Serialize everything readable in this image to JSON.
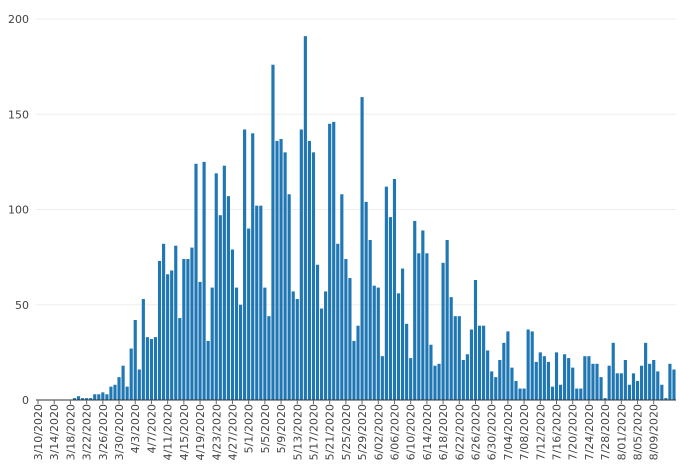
{
  "chart_data": {
    "type": "bar",
    "title": "",
    "xlabel": "",
    "ylabel": "",
    "ylim": [
      0,
      200
    ],
    "grid": true,
    "legend": "none",
    "bar_color": "#1f77b4",
    "grid_color": "#eeeeee",
    "ytick_values": [
      0,
      50,
      100,
      150,
      200
    ],
    "ytick_labels": [
      "0",
      "50",
      "100",
      "150",
      "200"
    ],
    "x_start_date": "3/10/2020",
    "xtick_labels": [
      "3/10/2020",
      "3/14/2020",
      "3/18/2020",
      "3/22/2020",
      "3/26/2020",
      "3/30/2020",
      "4/3/2020",
      "4/7/2020",
      "4/11/2020",
      "4/15/2020",
      "4/19/2020",
      "4/23/2020",
      "4/27/2020",
      "5/1/2020",
      "5/5/2020",
      "5/9/2020",
      "5/13/2020",
      "5/17/2020",
      "5/21/2020",
      "5/25/2020",
      "5/29/2020",
      "6/02/2020",
      "6/06/2020",
      "6/10/2020",
      "6/14/2020",
      "6/18/2020",
      "6/22/2020",
      "6/26/2020",
      "6/30/2020",
      "7/04/2020",
      "7/08/2020",
      "7/12/2020",
      "7/16/2020",
      "7/20/2020",
      "7/24/2020",
      "7/28/2020",
      "8/01/2020",
      "8/05/2020",
      "8/09/2020"
    ],
    "series": [
      {
        "values": [
          0,
          0,
          0,
          0,
          0,
          0,
          0,
          0,
          0,
          1,
          2,
          1,
          1,
          1,
          3,
          3,
          4,
          3,
          7,
          8,
          12,
          18,
          7,
          27,
          42,
          16,
          53,
          33,
          32,
          33,
          73,
          82,
          66,
          68,
          81,
          43,
          74,
          74,
          80,
          124,
          62,
          125,
          31,
          59,
          119,
          97,
          123,
          107,
          79,
          59,
          50,
          142,
          90,
          140,
          102,
          102,
          59,
          44,
          176,
          136,
          137,
          130,
          108,
          57,
          53,
          142,
          191,
          136,
          130,
          71,
          48,
          57,
          145,
          146,
          82,
          108,
          74,
          64,
          31,
          39,
          159,
          104,
          84,
          60,
          59,
          23,
          112,
          96,
          116,
          56,
          69,
          40,
          22,
          94,
          77,
          89,
          77,
          29,
          18,
          19,
          72,
          84,
          54,
          44,
          44,
          21,
          24,
          37,
          63,
          39,
          39,
          26,
          15,
          12,
          21,
          30,
          36,
          17,
          10,
          6,
          6,
          37,
          36,
          20,
          25,
          23,
          20,
          7,
          25,
          8,
          24,
          22,
          17,
          6,
          6,
          23,
          23,
          19,
          19,
          12,
          1,
          18,
          30,
          14,
          14,
          21,
          8,
          14,
          10,
          18,
          30,
          19,
          21,
          15,
          8,
          1,
          19,
          16
        ]
      }
    ]
  }
}
